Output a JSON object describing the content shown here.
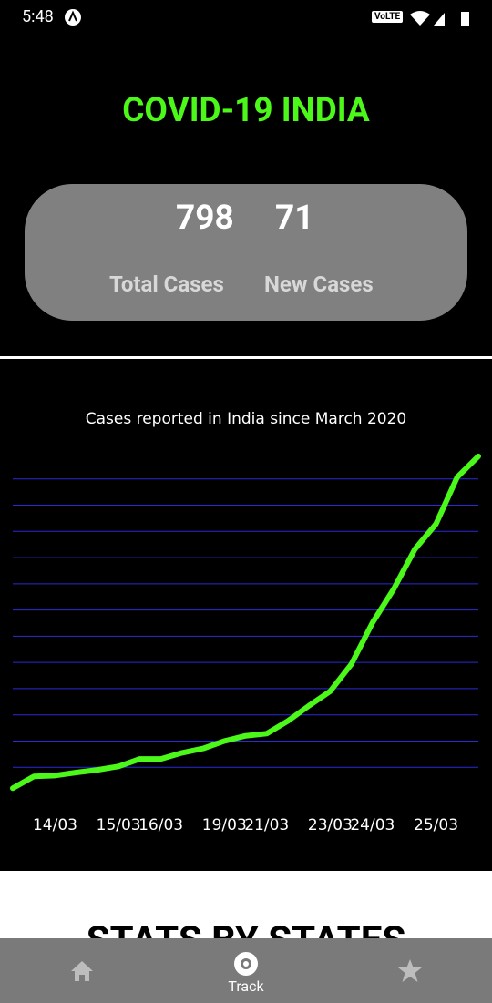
{
  "status_bar": {
    "time": "5:48",
    "network": "VoLTE"
  },
  "header": {
    "title": "COVID-19 INDIA"
  },
  "stats": [
    {
      "value": "798",
      "label": "Total Cases"
    },
    {
      "value": "71",
      "label": "New Cases"
    }
  ],
  "chart_data": {
    "type": "line",
    "title": "Cases reported in India since March 2020",
    "categories": [
      null,
      null,
      "14/03",
      null,
      null,
      "15/03",
      null,
      "16/03",
      null,
      null,
      "19/03",
      null,
      "21/03",
      null,
      null,
      "23/03",
      null,
      "24/03",
      null,
      null,
      "25/03",
      null,
      null
    ],
    "series": [
      {
        "name": "Cases",
        "color": "#4cf71a",
        "values": [
          12,
          39,
          41,
          48,
          54,
          62,
          79,
          79,
          93,
          103,
          120,
          132,
          137,
          166,
          201,
          234,
          296,
          391,
          468,
          559,
          617,
          724,
          772
        ]
      }
    ],
    "ylim": [
      0,
      780
    ],
    "yticks": [
      60,
      120,
      180,
      240,
      300,
      360,
      420,
      480,
      540,
      600,
      660,
      720
    ],
    "grid": true,
    "grid_color": "#2b2bd6"
  },
  "section": {
    "heading": "STATS BY STATES"
  },
  "nav": {
    "active": "Track"
  }
}
